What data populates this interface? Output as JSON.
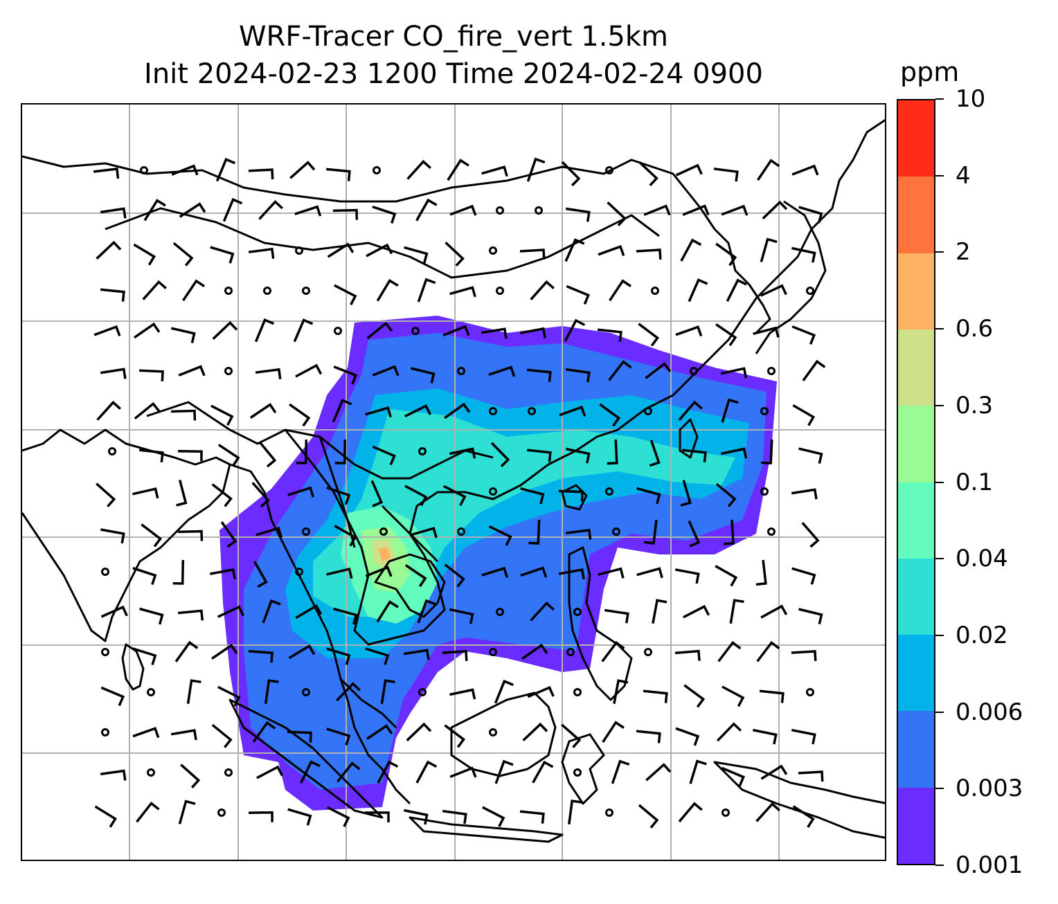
{
  "title": {
    "line1": "WRF-Tracer CO_fire_vert 1.5km",
    "line2": "Init 2024-02-23 1200 Time 2024-02-24 0900"
  },
  "colorbar": {
    "units": "ppm",
    "tick_labels": [
      "0.001",
      "0.003",
      "0.006",
      "0.02",
      "0.04",
      "0.1",
      "0.3",
      "0.6",
      "2",
      "4",
      "10"
    ],
    "colors": [
      "#6a2cff",
      "#3474f6",
      "#02b3ea",
      "#2ee0d4",
      "#64fbbe",
      "#9afb96",
      "#cfe08a",
      "#feb063",
      "#ff733e",
      "#ff2c17"
    ]
  },
  "map": {
    "coastline_color": "#000000",
    "gridline_color": "#b0b0b0",
    "wind_barb_color": "#000000",
    "layers": [
      "coastlines",
      "country-borders",
      "gridlines",
      "co-concentration-fill",
      "wind-barbs"
    ]
  }
}
